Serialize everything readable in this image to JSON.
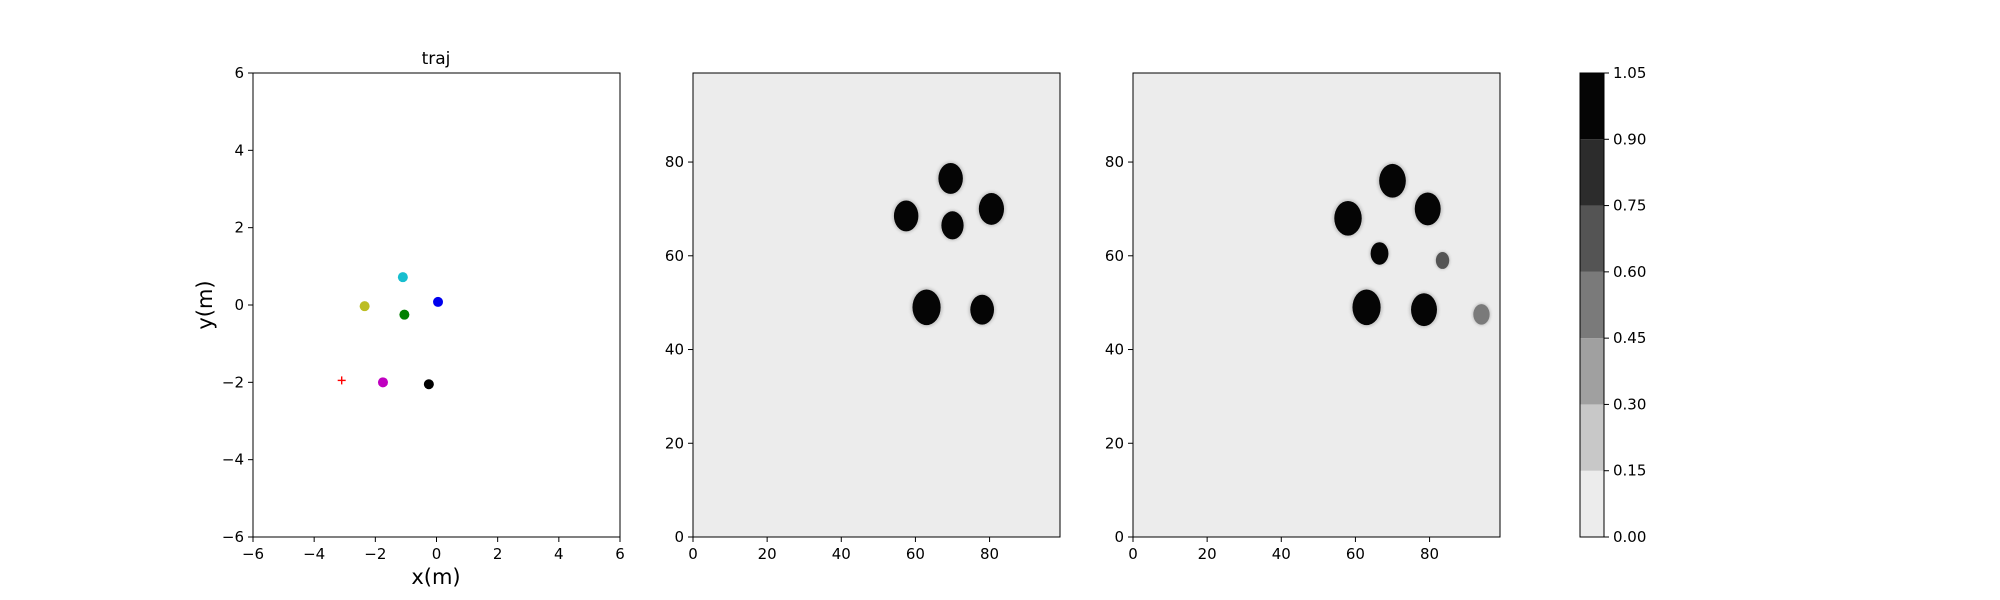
{
  "chart_data": [
    {
      "type": "scatter",
      "title": "traj",
      "xlabel": "x(m)",
      "ylabel": "y(m)",
      "xlim": [
        -6,
        6
      ],
      "ylim": [
        -6,
        6
      ],
      "xticks": [
        "−6",
        "−4",
        "−2",
        "0",
        "2",
        "4",
        "6"
      ],
      "yticks": [
        "−6",
        "−4",
        "−2",
        "0",
        "2",
        "4",
        "6"
      ],
      "grid": false,
      "points": [
        {
          "x": -1.1,
          "y": 0.72,
          "color": "#17becf",
          "marker": "circle"
        },
        {
          "x": 0.05,
          "y": 0.08,
          "color": "#0000ee",
          "marker": "circle"
        },
        {
          "x": -2.35,
          "y": -0.03,
          "color": "#bcbd22",
          "marker": "circle"
        },
        {
          "x": -1.05,
          "y": -0.25,
          "color": "#008000",
          "marker": "circle"
        },
        {
          "x": -1.75,
          "y": -2.0,
          "color": "#c000c0",
          "marker": "circle"
        },
        {
          "x": -0.25,
          "y": -2.05,
          "color": "#000000",
          "marker": "circle"
        },
        {
          "x": -3.1,
          "y": -1.95,
          "color": "#ff0000",
          "marker": "plus"
        }
      ]
    },
    {
      "type": "heatmap",
      "xlim": [
        0,
        99
      ],
      "ylim": [
        0,
        99
      ],
      "xticks": [
        "0",
        "20",
        "40",
        "60",
        "80"
      ],
      "yticks": [
        "0",
        "20",
        "40",
        "60",
        "80"
      ],
      "background_color": "#ececec",
      "blobs": [
        {
          "x": 69.5,
          "y": 76.5,
          "r": 3.3,
          "value": 1.0
        },
        {
          "x": 57.5,
          "y": 68.5,
          "r": 3.3,
          "value": 1.0
        },
        {
          "x": 70.0,
          "y": 66.5,
          "r": 3.0,
          "value": 1.0
        },
        {
          "x": 80.5,
          "y": 70.0,
          "r": 3.4,
          "value": 1.0
        },
        {
          "x": 63.0,
          "y": 49.0,
          "r": 3.8,
          "value": 1.0
        },
        {
          "x": 78.0,
          "y": 48.5,
          "r": 3.2,
          "value": 1.0
        }
      ]
    },
    {
      "type": "heatmap",
      "xlim": [
        0,
        99
      ],
      "ylim": [
        0,
        99
      ],
      "xticks": [
        "0",
        "20",
        "40",
        "60",
        "80"
      ],
      "yticks": [
        "0",
        "20",
        "40",
        "60",
        "80"
      ],
      "background_color": "#ececec",
      "blobs": [
        {
          "x": 70.0,
          "y": 76.0,
          "r": 3.6,
          "value": 1.0
        },
        {
          "x": 58.0,
          "y": 68.0,
          "r": 3.7,
          "value": 1.0
        },
        {
          "x": 79.5,
          "y": 70.0,
          "r": 3.5,
          "value": 1.0
        },
        {
          "x": 66.5,
          "y": 60.5,
          "r": 2.4,
          "value": 0.95
        },
        {
          "x": 83.5,
          "y": 59.0,
          "r": 1.8,
          "value": 0.6
        },
        {
          "x": 63.0,
          "y": 49.0,
          "r": 3.8,
          "value": 1.0
        },
        {
          "x": 78.5,
          "y": 48.5,
          "r": 3.5,
          "value": 1.0
        },
        {
          "x": 94.0,
          "y": 47.5,
          "r": 2.2,
          "value": 0.45
        }
      ]
    }
  ],
  "colorbar": {
    "range": [
      0,
      1.05
    ],
    "levels": [
      0.0,
      0.15,
      0.3,
      0.45,
      0.6,
      0.75,
      0.9,
      1.05
    ],
    "tick_labels": [
      "0.00",
      "0.15",
      "0.30",
      "0.45",
      "0.60",
      "0.75",
      "0.90",
      "1.05"
    ],
    "band_colors": [
      "#ececec",
      "#c8c8c8",
      "#a0a0a0",
      "#7a7a7a",
      "#545454",
      "#2c2c2c",
      "#050505"
    ]
  }
}
